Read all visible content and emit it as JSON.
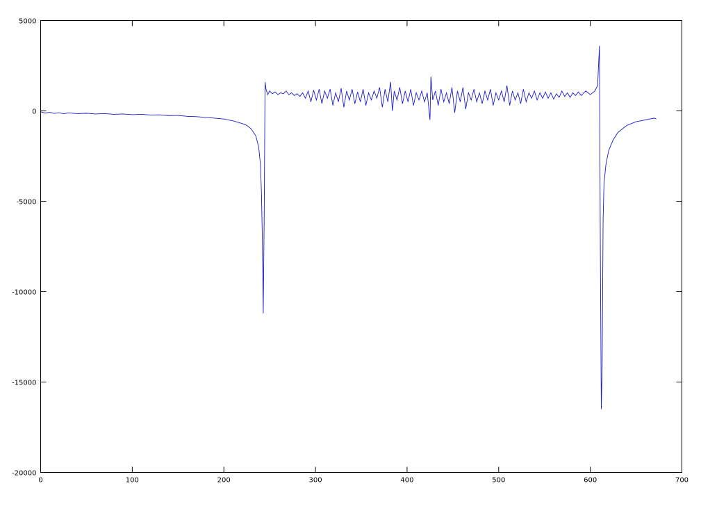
{
  "chart_data": {
    "type": "line",
    "color": "#1a1acc",
    "xlim": [
      0,
      700
    ],
    "xticks": [
      0,
      100,
      200,
      300,
      400,
      500,
      600,
      700
    ],
    "ylim": [
      -20000,
      5000
    ],
    "yticks": [
      -20000,
      -15000,
      -10000,
      -5000,
      0,
      5000
    ],
    "grid": false,
    "x": [
      0,
      5,
      10,
      15,
      20,
      25,
      30,
      40,
      50,
      60,
      70,
      80,
      90,
      100,
      110,
      120,
      130,
      140,
      150,
      160,
      170,
      180,
      190,
      200,
      210,
      220,
      225,
      230,
      235,
      238,
      240,
      241,
      242,
      243,
      244,
      245,
      246,
      248,
      250,
      253,
      256,
      259,
      262,
      265,
      268,
      271,
      274,
      277,
      280,
      283,
      286,
      289,
      292,
      295,
      298,
      301,
      304,
      307,
      310,
      313,
      316,
      319,
      322,
      325,
      328,
      331,
      334,
      337,
      340,
      343,
      346,
      349,
      352,
      355,
      358,
      361,
      364,
      367,
      370,
      373,
      376,
      379,
      382,
      384,
      386,
      389,
      392,
      395,
      398,
      401,
      404,
      407,
      410,
      413,
      416,
      419,
      422,
      425,
      426,
      428,
      431,
      434,
      437,
      440,
      443,
      446,
      449,
      452,
      455,
      458,
      461,
      464,
      467,
      470,
      473,
      476,
      479,
      482,
      485,
      488,
      491,
      494,
      497,
      500,
      503,
      506,
      509,
      512,
      515,
      518,
      521,
      524,
      527,
      530,
      533,
      536,
      539,
      542,
      545,
      548,
      551,
      554,
      557,
      560,
      563,
      566,
      569,
      572,
      575,
      578,
      581,
      584,
      587,
      590,
      595,
      600,
      605,
      608,
      609,
      610,
      611,
      612,
      613,
      614,
      615,
      617,
      620,
      625,
      630,
      635,
      640,
      645,
      650,
      655,
      660,
      665,
      670,
      672
    ],
    "values": [
      -50,
      -120,
      -80,
      -140,
      -100,
      -160,
      -110,
      -150,
      -130,
      -170,
      -150,
      -190,
      -170,
      -210,
      -190,
      -230,
      -220,
      -260,
      -250,
      -300,
      -320,
      -360,
      -400,
      -450,
      -550,
      -700,
      -800,
      -1000,
      -1400,
      -2000,
      -3000,
      -4500,
      -7000,
      -11200,
      -6000,
      1600,
      1200,
      900,
      1100,
      950,
      1050,
      900,
      1000,
      950,
      1100,
      900,
      1000,
      850,
      950,
      800,
      1000,
      700,
      1100,
      500,
      1150,
      600,
      1200,
      400,
      1100,
      700,
      1200,
      300,
      1000,
      500,
      1250,
      200,
      1100,
      600,
      1200,
      400,
      1050,
      500,
      1200,
      300,
      1000,
      600,
      1100,
      700,
      1300,
      200,
      1200,
      500,
      1600,
      0,
      1100,
      600,
      1300,
      400,
      1100,
      500,
      1200,
      300,
      1000,
      600,
      1100,
      500,
      1000,
      -500,
      1900,
      600,
      1100,
      300,
      1200,
      500,
      1000,
      400,
      1300,
      -100,
      1100,
      500,
      1300,
      100,
      1000,
      600,
      1200,
      500,
      1000,
      400,
      1100,
      600,
      1200,
      300,
      1000,
      600,
      1100,
      500,
      1400,
      300,
      1100,
      600,
      1000,
      400,
      1200,
      500,
      1000,
      700,
      1100,
      600,
      1000,
      700,
      1050,
      700,
      1000,
      650,
      950,
      750,
      1100,
      800,
      1000,
      750,
      1000,
      850,
      1050,
      850,
      1100,
      900,
      1100,
      1400,
      2500,
      3600,
      -8000,
      -16500,
      -14000,
      -6000,
      -4000,
      -3000,
      -2200,
      -1600,
      -1200,
      -1000,
      -800,
      -700,
      -600,
      -550,
      -500,
      -450,
      -400,
      -450
    ]
  }
}
